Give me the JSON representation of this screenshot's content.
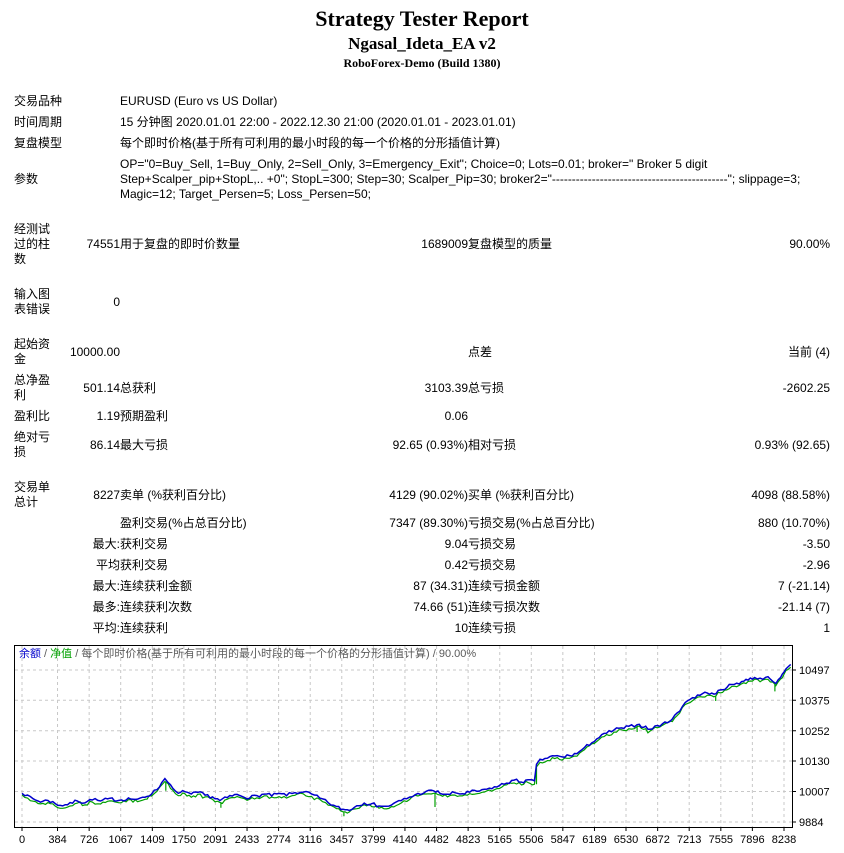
{
  "header": {
    "title": "Strategy Tester Report",
    "expert_name": "Ngasal_Ideta_EA v2",
    "server": "RoboForex-Demo (Build 1380)"
  },
  "report": {
    "rows": [
      {
        "cells": [
          {
            "col": 1,
            "t": "交易品种"
          },
          {
            "col": 3,
            "span": 4,
            "t": "EURUSD (Euro vs US Dollar)"
          }
        ]
      },
      {
        "cells": [
          {
            "col": 1,
            "t": "时间周期"
          },
          {
            "col": 3,
            "span": 4,
            "t": "15 分钟图 2020.01.01 22:00 - 2022.12.30 21:00 (2020.01.01 - 2023.01.01)"
          }
        ]
      },
      {
        "cells": [
          {
            "col": 1,
            "t": "复盘模型"
          },
          {
            "col": 3,
            "span": 4,
            "t": "每个即时价格(基于所有可利用的最小时段的每一个价格的分形插值计算)"
          }
        ]
      },
      {
        "cells": [
          {
            "col": 1,
            "t": "参数"
          },
          {
            "col": 3,
            "span": 4,
            "t": "OP=\"0=Buy_Sell, 1=Buy_Only, 2=Sell_Only, 3=Emergency_Exit\"; Choice=0; Lots=0.01; broker=\" Broker 5 digit Step+Scalper_pip+StopL,.. +0\"; StopL=300; Step=30; Scalper_Pip=30; broker2=\"--------------------------------------------\"; slippage=3; Magic=12; Target_Persen=5; Loss_Persen=50;"
          }
        ]
      },
      {
        "gap": true
      },
      {
        "cells": [
          {
            "col": 1,
            "t": "经测试\n过的柱\n数"
          },
          {
            "col": 2,
            "t": "74551"
          },
          {
            "col": 3,
            "t": "用于复盘的即时价数量"
          },
          {
            "col": 4,
            "t": "1689009"
          },
          {
            "col": 5,
            "t": "复盘模型的质量"
          },
          {
            "col": 6,
            "t": "90.00%"
          }
        ]
      },
      {
        "gap": true
      },
      {
        "cells": [
          {
            "col": 1,
            "t": "输入图\n表错误"
          },
          {
            "col": 2,
            "t": "0"
          }
        ]
      },
      {
        "gap": true
      },
      {
        "cells": [
          {
            "col": 1,
            "t": "起始资\n金"
          },
          {
            "col": 2,
            "t": "10000.00"
          },
          {
            "col": 5,
            "t": "点差"
          },
          {
            "col": 6,
            "t": "当前 (4)"
          }
        ]
      },
      {
        "cells": [
          {
            "col": 1,
            "t": "总净盈\n利"
          },
          {
            "col": 2,
            "t": "501.14"
          },
          {
            "col": 3,
            "t": "总获利"
          },
          {
            "col": 4,
            "t": "3103.39"
          },
          {
            "col": 5,
            "t": "总亏损"
          },
          {
            "col": 6,
            "t": "-2602.25"
          }
        ]
      },
      {
        "cells": [
          {
            "col": 1,
            "t": "盈利比"
          },
          {
            "col": 2,
            "t": "1.19"
          },
          {
            "col": 3,
            "t": "预期盈利"
          },
          {
            "col": 4,
            "t": "0.06"
          }
        ]
      },
      {
        "cells": [
          {
            "col": 1,
            "t": "绝对亏\n损"
          },
          {
            "col": 2,
            "t": "86.14"
          },
          {
            "col": 3,
            "t": "最大亏损"
          },
          {
            "col": 4,
            "t": "92.65 (0.93%)"
          },
          {
            "col": 5,
            "t": "相对亏损"
          },
          {
            "col": 6,
            "t": "0.93% (92.65)"
          }
        ]
      },
      {
        "gap": true
      },
      {
        "cells": [
          {
            "col": 1,
            "t": "交易单\n总计"
          },
          {
            "col": 2,
            "t": "8227"
          },
          {
            "col": 3,
            "t": "卖单 (%获利百分比)"
          },
          {
            "col": 4,
            "t": "4129 (90.02%)"
          },
          {
            "col": 5,
            "t": "买单 (%获利百分比)"
          },
          {
            "col": 6,
            "t": "4098 (88.58%)"
          }
        ]
      },
      {
        "cells": [
          {
            "col": 3,
            "t": "盈利交易(%占总百分比)"
          },
          {
            "col": 4,
            "t": "7347 (89.30%)"
          },
          {
            "col": 5,
            "t": "亏损交易(%占总百分比)"
          },
          {
            "col": 6,
            "t": "880 (10.70%)"
          }
        ]
      },
      {
        "cells": [
          {
            "col": 2,
            "t": "最大:"
          },
          {
            "col": 3,
            "t": "获利交易"
          },
          {
            "col": 4,
            "t": "9.04"
          },
          {
            "col": 5,
            "t": "亏损交易"
          },
          {
            "col": 6,
            "t": "-3.50"
          }
        ]
      },
      {
        "cells": [
          {
            "col": 2,
            "t": "平均"
          },
          {
            "col": 3,
            "t": "获利交易"
          },
          {
            "col": 4,
            "t": "0.42"
          },
          {
            "col": 5,
            "t": "亏损交易"
          },
          {
            "col": 6,
            "t": "-2.96"
          }
        ]
      },
      {
        "cells": [
          {
            "col": 2,
            "t": "最大:"
          },
          {
            "col": 3,
            "t": "连续获利金额"
          },
          {
            "col": 4,
            "t": "87 (34.31)"
          },
          {
            "col": 5,
            "t": "连续亏损金额"
          },
          {
            "col": 6,
            "t": "7 (-21.14)"
          }
        ]
      },
      {
        "cells": [
          {
            "col": 2,
            "t": "最多:"
          },
          {
            "col": 3,
            "t": "连续获利次数"
          },
          {
            "col": 4,
            "t": "74.66 (51)"
          },
          {
            "col": 5,
            "t": "连续亏损次数"
          },
          {
            "col": 6,
            "t": "-21.14 (7)"
          }
        ]
      },
      {
        "cells": [
          {
            "col": 2,
            "t": "平均:"
          },
          {
            "col": 3,
            "t": "连续获利"
          },
          {
            "col": 4,
            "t": "10"
          },
          {
            "col": 5,
            "t": "连续亏损"
          },
          {
            "col": 6,
            "t": "1"
          }
        ]
      }
    ]
  },
  "chart_data": {
    "type": "line",
    "legend": {
      "balance": "余额",
      "equity": "净值",
      "model": "每个即时价格(基于所有可利用的最小时段的每一个价格的分形插值计算)",
      "quality": "90.00%",
      "separator": " / "
    },
    "balance_color": "#0000cc",
    "equity_color": "#00a000",
    "grid_color": "#c8c8c8",
    "x_ticks": [
      0,
      384,
      726,
      1067,
      1409,
      1750,
      2091,
      2433,
      2774,
      3116,
      3457,
      3799,
      4140,
      4482,
      4823,
      5165,
      5506,
      5847,
      6189,
      6530,
      6872,
      7213,
      7555,
      7896,
      8238
    ],
    "y_ticks": [
      10497,
      10375,
      10252,
      10130,
      10007,
      9884
    ],
    "xlabel": "",
    "ylabel": "",
    "series": [
      {
        "name": "余额",
        "anchors": [
          [
            0,
            10002
          ],
          [
            60,
            9990
          ],
          [
            120,
            9978
          ],
          [
            200,
            9965
          ],
          [
            280,
            9972
          ],
          [
            360,
            9958
          ],
          [
            440,
            9950
          ],
          [
            520,
            9960
          ],
          [
            600,
            9970
          ],
          [
            680,
            9962
          ],
          [
            760,
            9975
          ],
          [
            850,
            9968
          ],
          [
            950,
            9978
          ],
          [
            1050,
            9972
          ],
          [
            1150,
            9980
          ],
          [
            1250,
            9974
          ],
          [
            1330,
            9985
          ],
          [
            1400,
            9998
          ],
          [
            1460,
            10015
          ],
          [
            1510,
            10042
          ],
          [
            1545,
            10060
          ],
          [
            1580,
            10045
          ],
          [
            1630,
            10018
          ],
          [
            1690,
            9998
          ],
          [
            1760,
            10008
          ],
          [
            1830,
            9995
          ],
          [
            1900,
            10003
          ],
          [
            1980,
            9992
          ],
          [
            2060,
            9985
          ],
          [
            2140,
            9970
          ],
          [
            2220,
            9982
          ],
          [
            2300,
            9994
          ],
          [
            2380,
            9988
          ],
          [
            2460,
            9982
          ],
          [
            2540,
            9990
          ],
          [
            2620,
            9996
          ],
          [
            2700,
            9990
          ],
          [
            2780,
            9998
          ],
          [
            2860,
            9992
          ],
          [
            2950,
            10002
          ],
          [
            3040,
            10006
          ],
          [
            3130,
            9996
          ],
          [
            3220,
            9980
          ],
          [
            3310,
            9962
          ],
          [
            3400,
            9945
          ],
          [
            3470,
            9935
          ],
          [
            3540,
            9932
          ],
          [
            3620,
            9950
          ],
          [
            3700,
            9962
          ],
          [
            3780,
            9956
          ],
          [
            3860,
            9950
          ],
          [
            3940,
            9946
          ],
          [
            4020,
            9958
          ],
          [
            4100,
            9970
          ],
          [
            4190,
            9984
          ],
          [
            4280,
            9998
          ],
          [
            4370,
            10006
          ],
          [
            4450,
            10010
          ],
          [
            4520,
            10000
          ],
          [
            4600,
            9994
          ],
          [
            4680,
            10002
          ],
          [
            4760,
            9998
          ],
          [
            4840,
            10004
          ],
          [
            4920,
            10008
          ],
          [
            5000,
            10014
          ],
          [
            5080,
            10020
          ],
          [
            5160,
            10030
          ],
          [
            5240,
            10042
          ],
          [
            5320,
            10052
          ],
          [
            5400,
            10046
          ],
          [
            5470,
            10052
          ],
          [
            5540,
            10048
          ],
          [
            5562,
            10118
          ],
          [
            5600,
            10135
          ],
          [
            5680,
            10142
          ],
          [
            5760,
            10150
          ],
          [
            5840,
            10146
          ],
          [
            5920,
            10152
          ],
          [
            6000,
            10160
          ],
          [
            6080,
            10182
          ],
          [
            6160,
            10205
          ],
          [
            6240,
            10225
          ],
          [
            6320,
            10242
          ],
          [
            6400,
            10255
          ],
          [
            6480,
            10262
          ],
          [
            6560,
            10268
          ],
          [
            6650,
            10278
          ],
          [
            6720,
            10268
          ],
          [
            6790,
            10258
          ],
          [
            6870,
            10272
          ],
          [
            6950,
            10285
          ],
          [
            7030,
            10300
          ],
          [
            7110,
            10332
          ],
          [
            7170,
            10368
          ],
          [
            7250,
            10385
          ],
          [
            7330,
            10396
          ],
          [
            7410,
            10406
          ],
          [
            7480,
            10398
          ],
          [
            7550,
            10416
          ],
          [
            7620,
            10428
          ],
          [
            7700,
            10440
          ],
          [
            7780,
            10450
          ],
          [
            7850,
            10458
          ],
          [
            7920,
            10468
          ],
          [
            7980,
            10462
          ],
          [
            8040,
            10470
          ],
          [
            8090,
            10458
          ],
          [
            8150,
            10442
          ],
          [
            8200,
            10468
          ],
          [
            8240,
            10492
          ],
          [
            8280,
            10508
          ],
          [
            8310,
            10518
          ]
        ]
      },
      {
        "name": "净值",
        "offset": -7,
        "spikes": [
          [
            1555,
            35
          ],
          [
            2150,
            20
          ],
          [
            3480,
            18
          ],
          [
            4465,
            55
          ],
          [
            5562,
            70
          ],
          [
            6650,
            22
          ],
          [
            7500,
            20
          ],
          [
            8140,
            28
          ]
        ]
      }
    ]
  }
}
